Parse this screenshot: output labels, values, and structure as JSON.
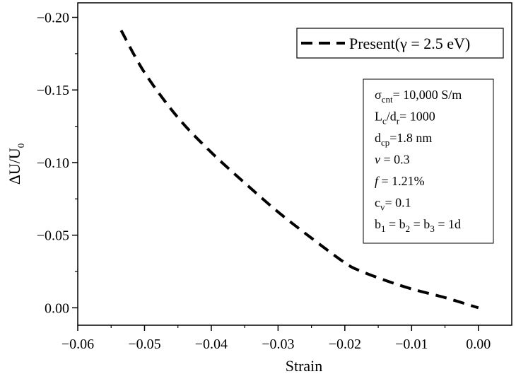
{
  "chart_data": {
    "type": "line",
    "title": "",
    "xlabel": "Strain",
    "ylabel": "ΔU/U",
    "ylabel_sub": "0",
    "xlim": [
      -0.06,
      0.005
    ],
    "ylim": [
      0.012,
      -0.21
    ],
    "x_ticks": [
      -0.06,
      -0.05,
      -0.04,
      -0.03,
      -0.02,
      -0.01,
      0.0
    ],
    "x_tick_labels": [
      "−0.06",
      "−0.05",
      "−0.04",
      "−0.03",
      "−0.02",
      "−0.01",
      "0.00"
    ],
    "y_ticks": [
      0.0,
      -0.05,
      -0.1,
      -0.15,
      -0.2
    ],
    "y_tick_labels": [
      "0.00",
      "−0.05",
      "−0.10",
      "−0.15",
      "−0.20"
    ],
    "grid": false,
    "legend_position": "top-right",
    "series": [
      {
        "name": "Present(γ = 2.5 eV)",
        "style": "dashed",
        "color": "#000000",
        "x": [
          -0.0535,
          -0.05,
          -0.045,
          -0.04,
          -0.035,
          -0.03,
          -0.025,
          -0.02,
          -0.018,
          -0.014,
          -0.01,
          -0.005,
          0.0
        ],
        "y": [
          -0.191,
          -0.162,
          -0.131,
          -0.107,
          -0.086,
          -0.066,
          -0.048,
          -0.031,
          -0.026,
          -0.019,
          -0.013,
          -0.007,
          0.0
        ]
      }
    ],
    "annotation": {
      "lines": [
        {
          "parts": [
            {
              "t": "σ"
            },
            {
              "t": "cnt",
              "sub": true
            },
            {
              "t": "= 10,000 S/m"
            }
          ]
        },
        {
          "parts": [
            {
              "t": "L"
            },
            {
              "t": "c",
              "sub": true
            },
            {
              "t": "/d"
            },
            {
              "t": "r",
              "sub": true
            },
            {
              "t": "= 1000"
            }
          ]
        },
        {
          "parts": [
            {
              "t": "d"
            },
            {
              "t": "cp",
              "sub": true
            },
            {
              "t": "=1.8 nm"
            }
          ]
        },
        {
          "parts": [
            {
              "t": "v",
              "italic": true
            },
            {
              "t": " = 0.3"
            }
          ]
        },
        {
          "parts": [
            {
              "t": "f",
              "italic": true
            },
            {
              "t": " = 1.21%"
            }
          ]
        },
        {
          "parts": [
            {
              "t": "c"
            },
            {
              "t": "v",
              "sub": true
            },
            {
              "t": "= 0.1"
            }
          ]
        },
        {
          "parts": [
            {
              "t": "b"
            },
            {
              "t": "1",
              "sub": true
            },
            {
              "t": " = b"
            },
            {
              "t": "2",
              "sub": true
            },
            {
              "t": " = b"
            },
            {
              "t": "3",
              "sub": true
            },
            {
              "t": " = 1d"
            }
          ]
        }
      ]
    }
  }
}
